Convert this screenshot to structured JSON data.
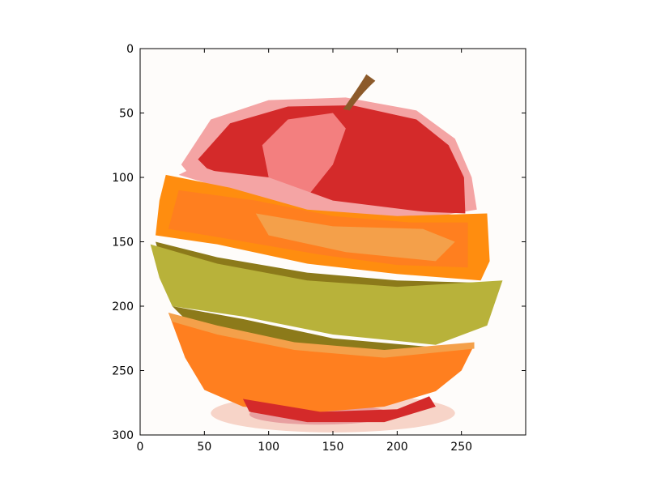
{
  "chart_data": {
    "type": "image",
    "title": "",
    "xlabel": "",
    "ylabel": "",
    "xlim": [
      0,
      300
    ],
    "ylim": [
      300,
      0
    ],
    "x_ticks": [
      0,
      50,
      100,
      150,
      200,
      250
    ],
    "y_ticks": [
      0,
      50,
      100,
      150,
      200,
      250,
      300
    ],
    "x_tick_labels": [
      "0",
      "50",
      "100",
      "150",
      "200",
      "250"
    ],
    "y_tick_labels": [
      "0",
      "50",
      "100",
      "150",
      "200",
      "250",
      "300"
    ],
    "grid": false,
    "image": {
      "subject": "apple with orange and kiwi slices inserted between layers",
      "width": 300,
      "height": 300,
      "palette": {
        "background": "#fefcfa",
        "shadow": "#f7d4c8",
        "shadow_dark": "#e8a0a0",
        "apple_red": "#d42a2a",
        "apple_highlight": "#f37f7f",
        "apple_pink": "#f4a4a4",
        "orange": "#ff7f1f",
        "orange_light": "#f4a04a",
        "orange_rind": "#ff8d0f",
        "kiwi": "#b8b23a",
        "kiwi_dark": "#8c7a1a",
        "stem": "#8c5a2a"
      }
    }
  }
}
